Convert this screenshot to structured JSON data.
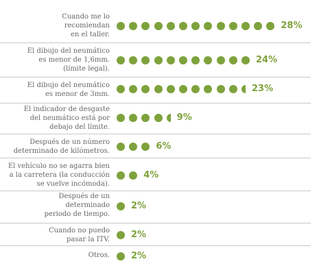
{
  "chart_data": {
    "type": "bar",
    "orientation": "horizontal",
    "mark": "dots",
    "accent_color": "#7ea23c",
    "label_color": "#666666",
    "categories": [
      "Cuando me lo\nrecomiendan\nen el taller.",
      "El dibujo del neumático\nes menor de 1,6mm.\n(límite legal).",
      "El dibujo del neumático\nes menor de 3mm.",
      "El indicador de desgaste\ndel neumático está por\ndebajo del límite.",
      "Después de un número\ndeterminado de kilómetros.",
      "El vehículo no se agarra bien\na la carretera (la conducción\nse vuelve incómoda).",
      "Después de un\ndeterminado\nperiodo de tiempo.",
      "Cuando no puedo\npasar la ITV.",
      "Otros."
    ],
    "values": [
      28,
      24,
      23,
      9,
      6,
      4,
      2,
      2,
      2
    ],
    "value_labels": [
      "28%",
      "24%",
      "23%",
      "9%",
      "6%",
      "4%",
      "2%",
      "2%",
      "2%"
    ],
    "dot_counts": [
      13,
      11,
      10.5,
      4.5,
      3,
      2,
      1,
      1,
      1
    ]
  }
}
